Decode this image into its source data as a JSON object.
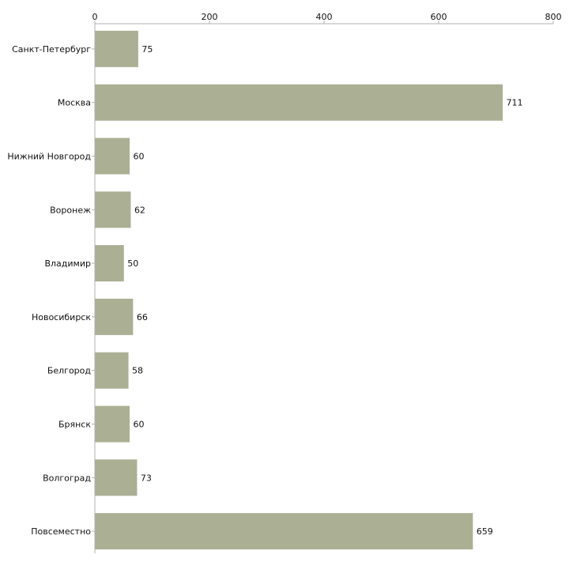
{
  "chart_data": {
    "type": "bar",
    "orientation": "horizontal",
    "title": "",
    "xlabel": "",
    "ylabel": "",
    "xlim": [
      0,
      800
    ],
    "x_ticks": [
      0,
      200,
      400,
      600,
      800
    ],
    "x_tick_labels": [
      "0",
      "200",
      "400",
      "600",
      "800"
    ],
    "grid": false,
    "categories": [
      "Санкт-Петербург",
      "Москва",
      "Нижний Новгород",
      "Воронеж",
      "Владимир",
      "Новосибирск",
      "Белгород",
      "Брянск",
      "Волгоград",
      "Повсеместно"
    ],
    "values": [
      75,
      711,
      60,
      62,
      50,
      66,
      58,
      60,
      73,
      659
    ],
    "value_labels": [
      "75",
      "711",
      "60",
      "62",
      "50",
      "66",
      "58",
      "60",
      "73",
      "659"
    ],
    "bar_color": "#abb095",
    "axis_color": "#b0b0b0",
    "text_color": "#111111"
  }
}
